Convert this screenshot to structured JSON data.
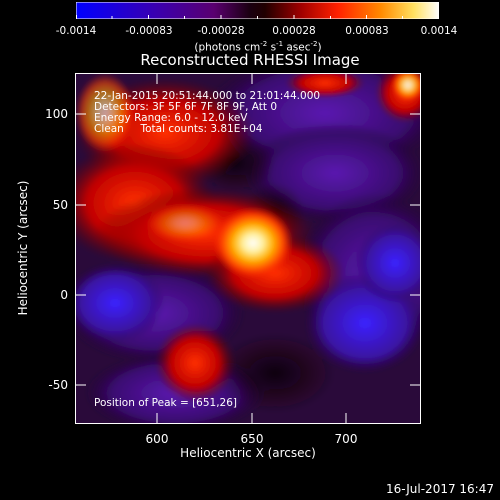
{
  "colorbar": {
    "tick_labels": [
      "-0.0014",
      "-0.00083",
      "-0.00028",
      "0.00028",
      "0.00083",
      "0.0014"
    ],
    "unit_parts": {
      "a": "(photons cm",
      "a_sup": "-2",
      "b": " s",
      "b_sup": "-1",
      "c": " asec",
      "c_sup": "-2",
      "d": ")"
    },
    "colors": [
      "#0000ff",
      "#4b0082",
      "#2b002b",
      "#000000",
      "#8b0000",
      "#ff3300",
      "#ff9900",
      "#ffffff"
    ]
  },
  "plot": {
    "title": "Reconstructed RHESSI Image",
    "info": {
      "time_range": "22-Jan-2015 20:51:44.000 to 21:01:44.000",
      "detectors": "Detectors: 3F 5F 6F 7F 8F 9F, Att 0",
      "energy": "Energy Range: 6.0 - 12.0 keV",
      "clean": "Clean     Total counts: 3.81E+04"
    },
    "peak_label": "Position of Peak = [651,26]",
    "xlabel": "Heliocentric X (arcsec)",
    "ylabel": "Heliocentric Y (arcsec)",
    "x_ticks": [
      "600",
      "650",
      "700"
    ],
    "y_ticks": [
      "100",
      "50",
      "0",
      "-50"
    ]
  },
  "image_data": {
    "xlim": [
      560,
      742
    ],
    "ylim": [
      -70,
      120
    ],
    "peak": [
      651,
      26
    ]
  },
  "timestamp": "16-Jul-2017 16:47"
}
